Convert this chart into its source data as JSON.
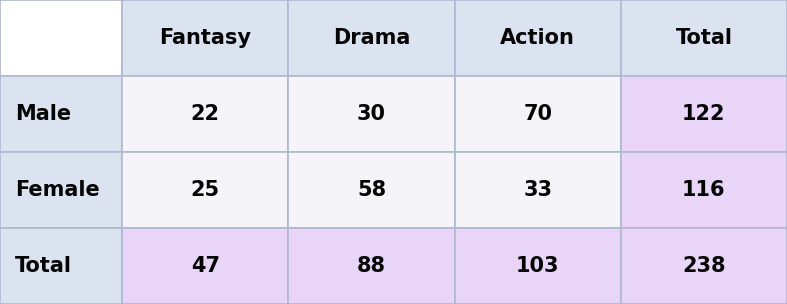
{
  "col_headers": [
    "",
    "Fantasy",
    "Drama",
    "Action",
    "Total"
  ],
  "rows": [
    [
      "Male",
      "22",
      "30",
      "70",
      "122"
    ],
    [
      "Female",
      "25",
      "58",
      "33",
      "116"
    ],
    [
      "Total",
      "47",
      "88",
      "103",
      "238"
    ]
  ],
  "color_header_bg": "#dce3f0",
  "color_row_label_bg": "#dce3f0",
  "color_data_bg": "#f5f4f8",
  "color_total_col_bg": "#e8d5f8",
  "color_total_row_bg": "#e8d5f8",
  "color_corner_bg": "#ffffff",
  "color_text": "#050505",
  "color_border": "#b0b8d0",
  "font_size": 15,
  "fig_width": 7.87,
  "fig_height": 3.04,
  "dpi": 100
}
